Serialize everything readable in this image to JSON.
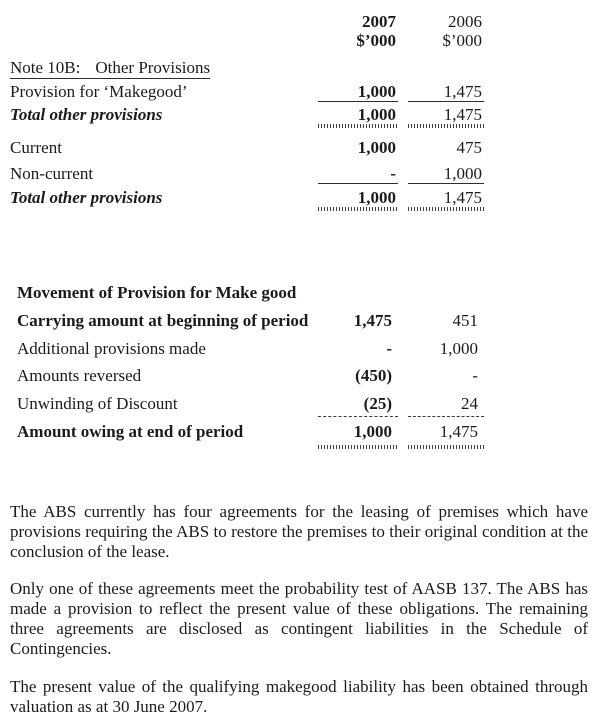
{
  "columns": {
    "year1": "2007",
    "unit1": "$’000",
    "year2": "2006",
    "unit2": "$’000"
  },
  "note_heading": {
    "label": "Note 10B:",
    "title": "Other Provisions"
  },
  "provisions_table": {
    "rows": [
      {
        "label": "Provision for ‘Makegood’",
        "v2007": "1,000",
        "v2006": "1,475"
      },
      {
        "label": "Total other provisions",
        "v2007": "1,000",
        "v2006": "1,475"
      },
      {
        "label": "Current",
        "v2007": "1,000",
        "v2006": "475"
      },
      {
        "label": "Non-current",
        "v2007": "-",
        "v2006": "1,000"
      },
      {
        "label": "Total other provisions",
        "v2007": "1,000",
        "v2006": "1,475"
      }
    ]
  },
  "movement_table": {
    "title": "Movement of Provision for Make good",
    "rows": [
      {
        "label": "Carrying amount at beginning of period",
        "v2007": "1,475",
        "v2006": "451"
      },
      {
        "label": "Additional provisions made",
        "v2007": "-",
        "v2006": "1,000"
      },
      {
        "label": "Amounts reversed",
        "v2007": "(450)",
        "v2006": "-"
      },
      {
        "label": "Unwinding of Discount",
        "v2007": "(25)",
        "v2006": "24"
      },
      {
        "label": "Amount owing at end of period",
        "v2007": "1,000",
        "v2006": "1,475"
      }
    ]
  },
  "paragraphs": [
    "The ABS currently has four agreements for the leasing of premises which have provisions requiring the ABS to restore the premises to their original condition at the conclusion of the lease.",
    "Only one of these agreements meet the probability test of AASB 137.  The ABS has made a provision to reflect the present value of these obligations.  The remaining three agreements are disclosed as contingent liabilities in the Schedule of Contingencies.",
    "The present value of the qualifying makegood liability has been obtained through valuation as at 30 June 2007."
  ],
  "colors": {
    "text": "#1b1b1b",
    "rule": "#2e2e2e",
    "background": "#ffffff"
  }
}
